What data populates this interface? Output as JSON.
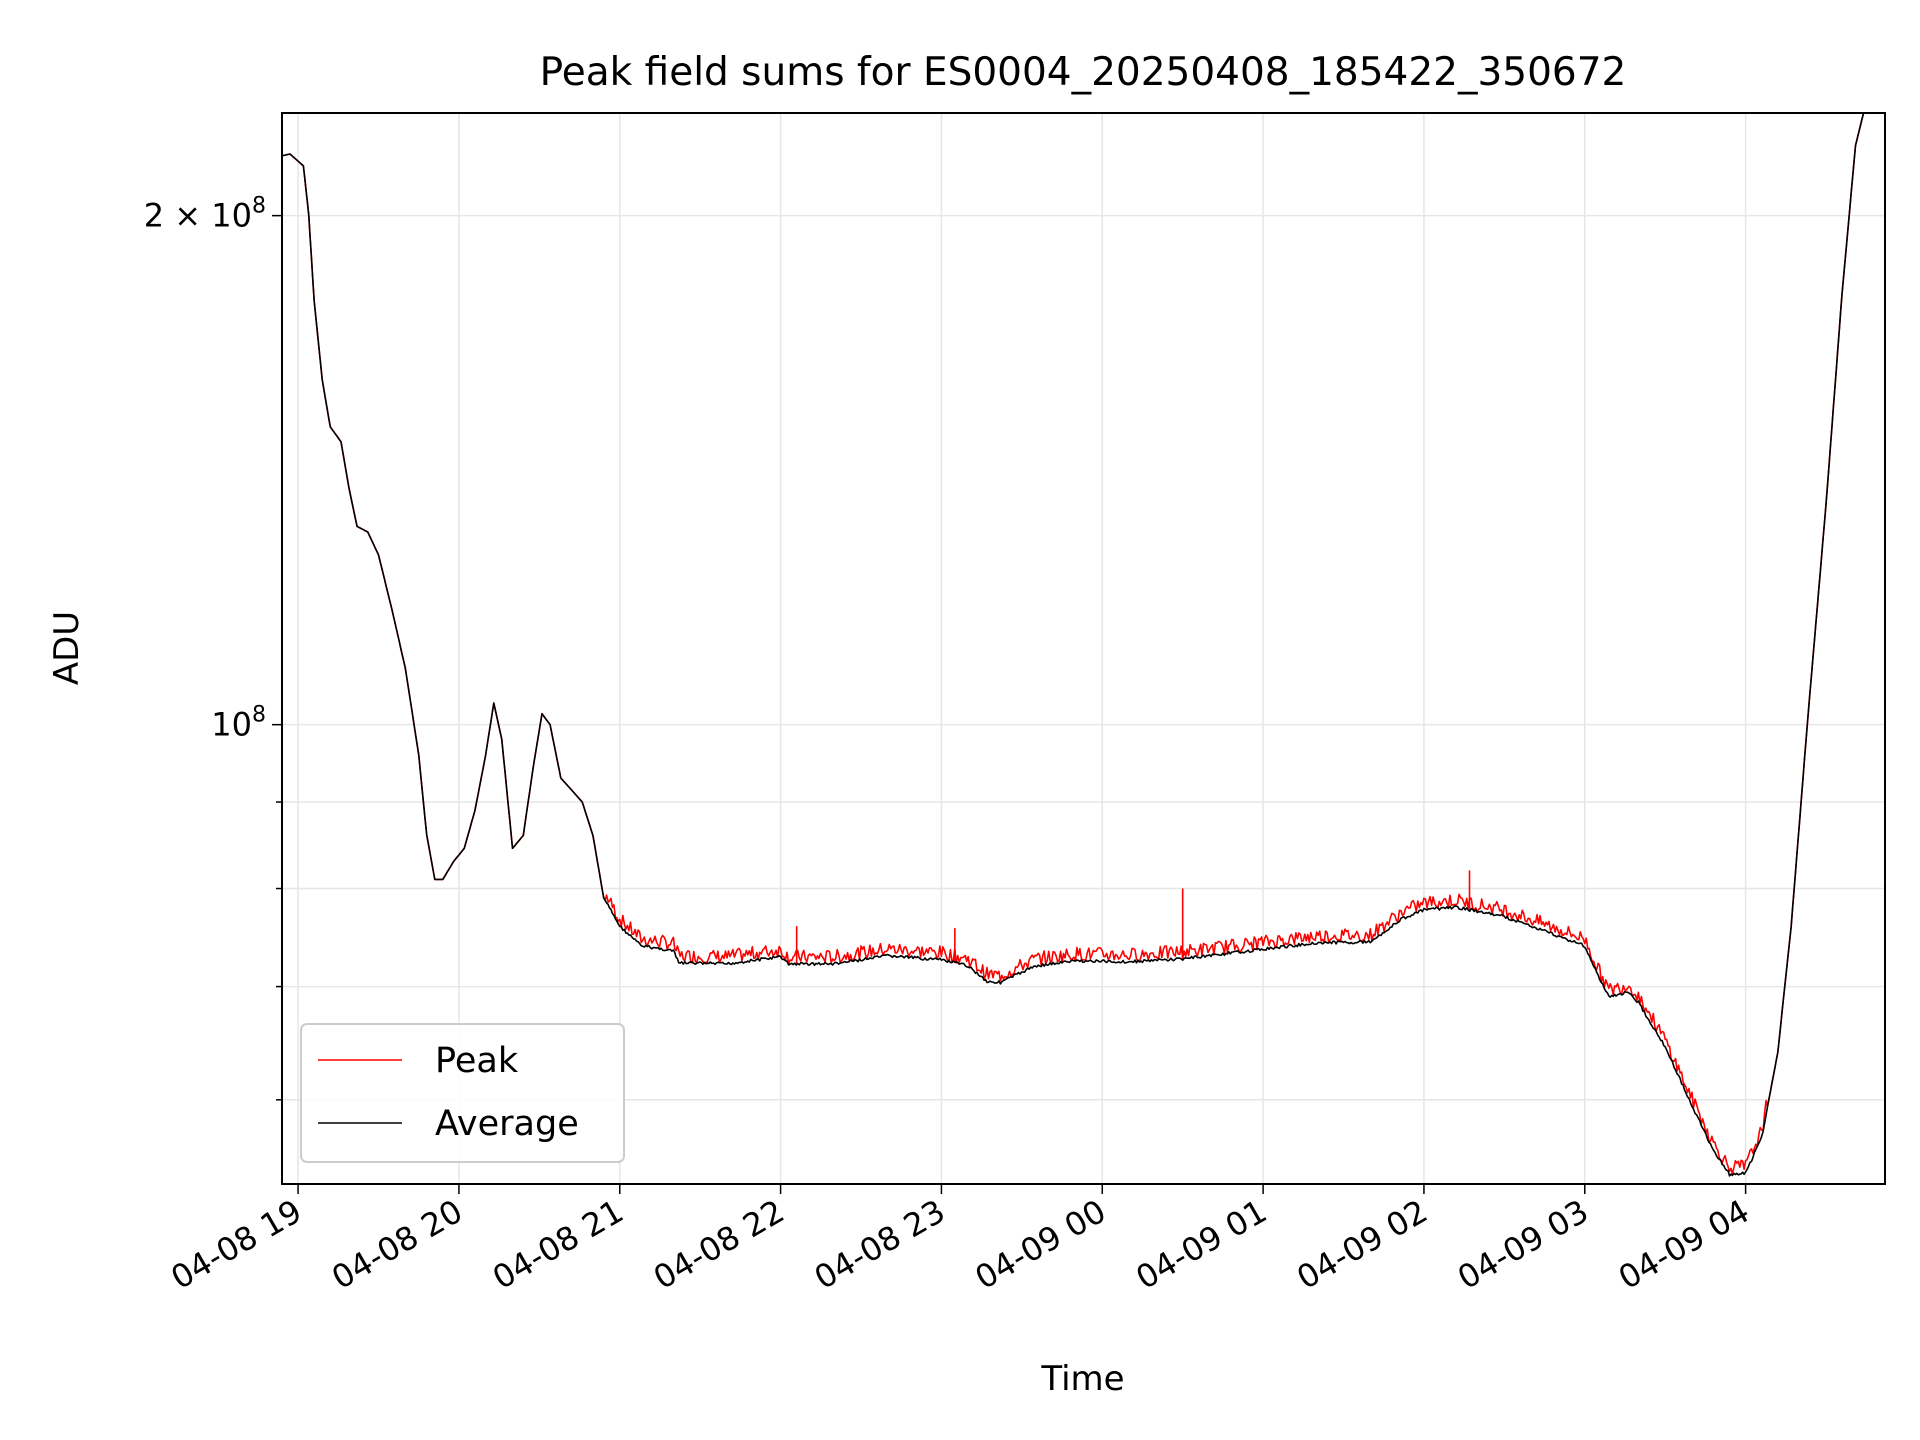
{
  "chart_data": {
    "type": "line",
    "title": "Peak field sums for ES0004_20250408_185422_350672",
    "xlabel": "Time",
    "ylabel": "ADU",
    "x_ticks": [
      "04-08 19",
      "04-08 20",
      "04-08 21",
      "04-08 22",
      "04-08 23",
      "04-09 00",
      "04-09 01",
      "04-09 02",
      "04-09 03",
      "04-09 04"
    ],
    "y_tick_labels": [
      {
        "value": 100000000,
        "base": "10",
        "exp": "8"
      },
      {
        "value": 200000000,
        "base": "2 × 10",
        "exp": "8"
      }
    ],
    "y_scale": "log",
    "ylim": [
      53500000,
      230000000
    ],
    "xlim": [
      "2025-04-08 18:54",
      "2025-04-09 04:52"
    ],
    "grid": true,
    "legend": {
      "placement": "lower-left",
      "entries": [
        "Peak",
        "Average"
      ]
    },
    "colors": {
      "peak": "#ff0000",
      "average": "#000000"
    },
    "series": [
      {
        "name": "Average",
        "color": "#000000",
        "points": [
          [
            "2025-04-08 18:54",
            217000000
          ],
          [
            "2025-04-08 18:57",
            217500000
          ],
          [
            "2025-04-08 19:02",
            214000000
          ],
          [
            "2025-04-08 19:04",
            200000000
          ],
          [
            "2025-04-08 19:06",
            178000000
          ],
          [
            "2025-04-08 19:09",
            160000000
          ],
          [
            "2025-04-08 19:12",
            150000000
          ],
          [
            "2025-04-08 19:14",
            148500000
          ],
          [
            "2025-04-08 19:16",
            147000000
          ],
          [
            "2025-04-08 19:19",
            138000000
          ],
          [
            "2025-04-08 19:22",
            131000000
          ],
          [
            "2025-04-08 19:26",
            130000000
          ],
          [
            "2025-04-08 19:30",
            126000000
          ],
          [
            "2025-04-08 19:35",
            117000000
          ],
          [
            "2025-04-08 19:40",
            108000000
          ],
          [
            "2025-04-08 19:45",
            96000000
          ],
          [
            "2025-04-08 19:48",
            86000000
          ],
          [
            "2025-04-08 19:51",
            81000000
          ],
          [
            "2025-04-08 19:54",
            81000000
          ],
          [
            "2025-04-08 19:58",
            83000000
          ],
          [
            "2025-04-08 20:02",
            84500000
          ],
          [
            "2025-04-08 20:06",
            89000000
          ],
          [
            "2025-04-08 20:10",
            96000000
          ],
          [
            "2025-04-08 20:13",
            103000000
          ],
          [
            "2025-04-08 20:16",
            98000000
          ],
          [
            "2025-04-08 20:20",
            84500000
          ],
          [
            "2025-04-08 20:24",
            86000000
          ],
          [
            "2025-04-08 20:28",
            95000000
          ],
          [
            "2025-04-08 20:31",
            101500000
          ],
          [
            "2025-04-08 20:34",
            100000000
          ],
          [
            "2025-04-08 20:38",
            93000000
          ],
          [
            "2025-04-08 20:42",
            91500000
          ],
          [
            "2025-04-08 20:46",
            90000000
          ],
          [
            "2025-04-08 20:50",
            86000000
          ],
          [
            "2025-04-08 20:54",
            79000000
          ],
          [
            "2025-04-08 21:00",
            76000000
          ],
          [
            "2025-04-08 21:08",
            74000000
          ],
          [
            "2025-04-08 21:20",
            73500000
          ],
          [
            "2025-04-08 21:22",
            72300000
          ],
          [
            "2025-04-08 21:40",
            72200000
          ],
          [
            "2025-04-08 22:00",
            72900000
          ],
          [
            "2025-04-08 22:03",
            72200000
          ],
          [
            "2025-04-08 22:20",
            72200000
          ],
          [
            "2025-04-08 22:40",
            73000000
          ],
          [
            "2025-04-08 23:00",
            72600000
          ],
          [
            "2025-04-08 23:10",
            72000000
          ],
          [
            "2025-04-08 23:17",
            70500000
          ],
          [
            "2025-04-08 23:22",
            70400000
          ],
          [
            "2025-04-08 23:35",
            72000000
          ],
          [
            "2025-04-08 23:50",
            72500000
          ],
          [
            "2025-04-09 00:10",
            72400000
          ],
          [
            "2025-04-09 00:30",
            72700000
          ],
          [
            "2025-04-09 00:55",
            73500000
          ],
          [
            "2025-04-09 01:20",
            74300000
          ],
          [
            "2025-04-09 01:40",
            74400000
          ],
          [
            "2025-04-09 01:52",
            76800000
          ],
          [
            "2025-04-09 02:00",
            77700000
          ],
          [
            "2025-04-09 02:12",
            78000000
          ],
          [
            "2025-04-09 02:30",
            77000000
          ],
          [
            "2025-04-09 02:45",
            75500000
          ],
          [
            "2025-04-09 03:00",
            74000000
          ],
          [
            "2025-04-09 03:05",
            71000000
          ],
          [
            "2025-04-09 03:09",
            69000000
          ],
          [
            "2025-04-09 03:16",
            69500000
          ],
          [
            "2025-04-09 03:20",
            68500000
          ],
          [
            "2025-04-09 03:30",
            64500000
          ],
          [
            "2025-04-09 03:40",
            59500000
          ],
          [
            "2025-04-09 03:48",
            56000000
          ],
          [
            "2025-04-09 03:54",
            54200000
          ],
          [
            "2025-04-09 04:00",
            54300000
          ],
          [
            "2025-04-09 04:06",
            57000000
          ],
          [
            "2025-04-09 04:12",
            64000000
          ],
          [
            "2025-04-09 04:17",
            76000000
          ],
          [
            "2025-04-09 04:23",
            100000000
          ],
          [
            "2025-04-09 04:30",
            135000000
          ],
          [
            "2025-04-09 04:36",
            180000000
          ],
          [
            "2025-04-09 04:41",
            220000000
          ],
          [
            "2025-04-09 04:44",
            230000000
          ],
          [
            "2025-04-09 04:52",
            230000000
          ]
        ]
      },
      {
        "name": "Peak",
        "color": "#ff0000",
        "spikes": [
          [
            "2025-04-08 22:06",
            76000000
          ],
          [
            "2025-04-08 23:05",
            75800000
          ],
          [
            "2025-04-09 00:30",
            80000000
          ],
          [
            "2025-04-09 02:17",
            82000000
          ]
        ]
      }
    ]
  }
}
